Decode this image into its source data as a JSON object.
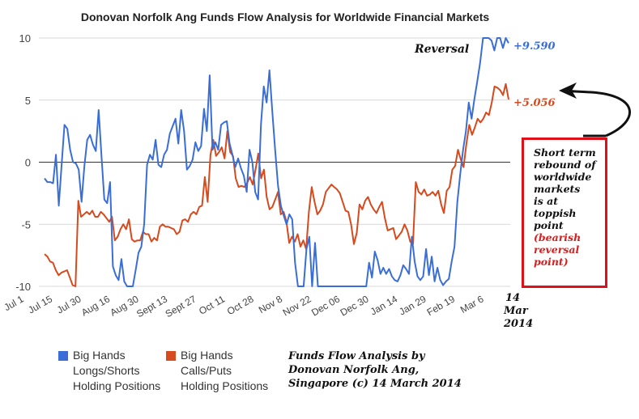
{
  "chart_data": {
    "type": "line",
    "title": "Donovan Norfolk Ang Funds Flow Analysis for Worldwide Financial Markets",
    "xlabel": "",
    "ylabel": "",
    "ylim": [
      -10,
      10
    ],
    "yticks": [
      10,
      5,
      0,
      -5,
      -10
    ],
    "xticks": [
      "Jul 1",
      "Jul 15",
      "Jul 30",
      "Aug 16",
      "Aug 30",
      "Sept 13",
      "Sept 27",
      "Oct 11",
      "Oct 28",
      "Nov 8",
      "Nov 22",
      "Dec 06",
      "Dec 30",
      "Jan 14",
      "Jan 29",
      "Feb 19",
      "Mar 6"
    ],
    "last_xtick": [
      "14",
      "Mar",
      "2014"
    ],
    "series": [
      {
        "name": "Big Hands Longs/Shorts Holding Positions",
        "color": "#3a6ed6",
        "end_label": "+9.590",
        "values": [
          -1.3,
          -1.6,
          -1.6,
          -1.7,
          0.6,
          -3.5,
          -0.2,
          3.0,
          2.7,
          1.0,
          0.0,
          -0.1,
          -0.6,
          -3.2,
          -0.3,
          1.8,
          2.2,
          1.4,
          0.9,
          4.2,
          0.5,
          -3.0,
          -3.3,
          -1.6,
          -8.4,
          -9.1,
          -9.5,
          -7.8,
          -9.6,
          -10.0,
          -10.0,
          -10.0,
          -8.7,
          -7.3,
          -6.8,
          -5.0,
          -0.2,
          0.6,
          0.2,
          1.8,
          -0.2,
          -0.4,
          0.6,
          1.0,
          2.3,
          2.9,
          3.5,
          1.5,
          4.2,
          2.5,
          -0.6,
          -0.3,
          0.2,
          1.6,
          0.9,
          1.3,
          4.3,
          2.5,
          7.0,
          1.0,
          1.6,
          1.0,
          3.0,
          3.2,
          3.3,
          1.5,
          0.6,
          -0.4,
          0.3,
          -0.5,
          -1.1,
          -2.4,
          1.0,
          0.0,
          -2.4,
          -3.0,
          3.0,
          6.1,
          4.8,
          7.4,
          4.1,
          1.0,
          -1.9,
          -3.5,
          -4.3,
          -5.0,
          -4.2,
          -4.6,
          -8.1,
          -10.0,
          -10.0,
          -10.0,
          -7.0,
          -6.0,
          -10.0,
          -6.5,
          -10.0,
          -10.0,
          -10.0,
          -10.0,
          -10.0,
          -10.0,
          -10.0,
          -10.0,
          -10.0,
          -10.0,
          -10.0,
          -10.0,
          -10.0,
          -10.0,
          -10.0,
          -10.0,
          -10.0,
          -10.0,
          -8.1,
          -9.3,
          -7.2,
          -7.9,
          -9.0,
          -8.5,
          -9.0,
          -8.6,
          -9.2,
          -9.5,
          -9.6,
          -9.1,
          -8.3,
          -8.6,
          -9.0,
          -6.0,
          -8.0,
          -9.2,
          -9.5,
          -9.2,
          -7.0,
          -9.1,
          -7.6,
          -9.6,
          -8.5,
          -9.5,
          -9.9,
          -9.6,
          -9.4,
          -8.0,
          -6.8,
          -3.2,
          -1.0,
          1.0,
          2.5,
          4.8,
          3.5,
          5.1,
          6.5,
          8.0,
          10.0,
          10.0,
          10.0,
          9.8,
          9.0,
          10.0,
          10.0,
          9.2,
          10.0,
          9.59
        ]
      },
      {
        "name": "Big Hands Calls/Puts Holding Positions",
        "color": "#d64a1e",
        "end_label": "+5.056",
        "values": [
          -7.4,
          -7.6,
          -8.0,
          -8.1,
          -8.7,
          -9.1,
          -8.9,
          -8.8,
          -8.7,
          -9.3,
          -9.9,
          -10.0,
          -3.1,
          -4.4,
          -4.2,
          -4.0,
          -4.2,
          -3.9,
          -4.4,
          -4.4,
          -4.0,
          -4.2,
          -4.5,
          -4.8,
          -4.4,
          -6.3,
          -6.0,
          -5.4,
          -5.0,
          -5.4,
          -4.6,
          -6.2,
          -6.4,
          -6.3,
          -6.3,
          -5.6,
          -5.8,
          -5.8,
          -6.4,
          -6.1,
          -6.3,
          -5.2,
          -5.0,
          -5.2,
          -5.2,
          -5.3,
          -5.4,
          -5.8,
          -5.6,
          -4.7,
          -4.6,
          -4.8,
          -4.2,
          -4.0,
          -4.2,
          -3.6,
          -3.5,
          -1.2,
          -3.2,
          0.6,
          1.8,
          0.5,
          0.8,
          1.2,
          0.3,
          2.5,
          0.8,
          0.5,
          -1.3,
          -2.0,
          -1.9,
          -2.0,
          -1.7,
          -1.2,
          -1.8,
          -0.6,
          0.7,
          -1.3,
          -0.6,
          -2.8,
          -3.8,
          -3.6,
          -3.0,
          -2.4,
          -4.2,
          -4.0,
          -4.8,
          -6.5,
          -6.0,
          -6.4,
          -5.8,
          -6.8,
          -6.3,
          -7.0,
          -4.0,
          -2.0,
          -3.2,
          -4.2,
          -3.9,
          -3.4,
          -2.4,
          -2.1,
          -1.8,
          -2.0,
          -2.2,
          -2.5,
          -3.2,
          -3.9,
          -4.0,
          -5.0,
          -6.6,
          -5.7,
          -3.4,
          -3.8,
          -3.1,
          -2.8,
          -3.4,
          -3.8,
          -4.1,
          -3.6,
          -3.2,
          -4.5,
          -5.5,
          -5.4,
          -5.3,
          -6.2,
          -5.9,
          -5.6,
          -5.0,
          -5.5,
          -6.4,
          -6.6,
          -1.6,
          -2.4,
          -2.6,
          -2.2,
          -2.7,
          -2.6,
          -2.4,
          -2.7,
          -2.3,
          -3.4,
          -4.1,
          -2.3,
          -2.0,
          -0.6,
          -0.3,
          1.0,
          0.2,
          -0.4,
          1.5,
          3.0,
          2.2,
          2.8,
          3.5,
          3.2,
          3.5,
          4.0,
          3.8,
          4.8,
          6.1,
          6.0,
          5.8,
          5.4,
          6.3,
          5.056
        ]
      }
    ]
  },
  "annotations": {
    "reversal": "Reversal",
    "callout_lines": [
      "Short term",
      "rebound of",
      "worldwide",
      "markets",
      "is at",
      "toppish",
      "point"
    ],
    "callout_red_lines": [
      "(bearish",
      "reversal",
      "point)"
    ]
  },
  "legend": {
    "blue_lines": [
      "Big Hands",
      "Longs/Shorts",
      "Holding Positions"
    ],
    "red_lines": [
      "Big Hands",
      "Calls/Puts",
      "Holding Positions"
    ]
  },
  "credit_lines": [
    "Funds Flow Analysis by",
    "Donovan Norfolk Ang,",
    "Singapore (c) 14 March 2014"
  ],
  "colors": {
    "blue": "#3a6ed6",
    "red": "#d64a1e",
    "callout_border": "#e0101a",
    "grid": "#cccccc"
  }
}
